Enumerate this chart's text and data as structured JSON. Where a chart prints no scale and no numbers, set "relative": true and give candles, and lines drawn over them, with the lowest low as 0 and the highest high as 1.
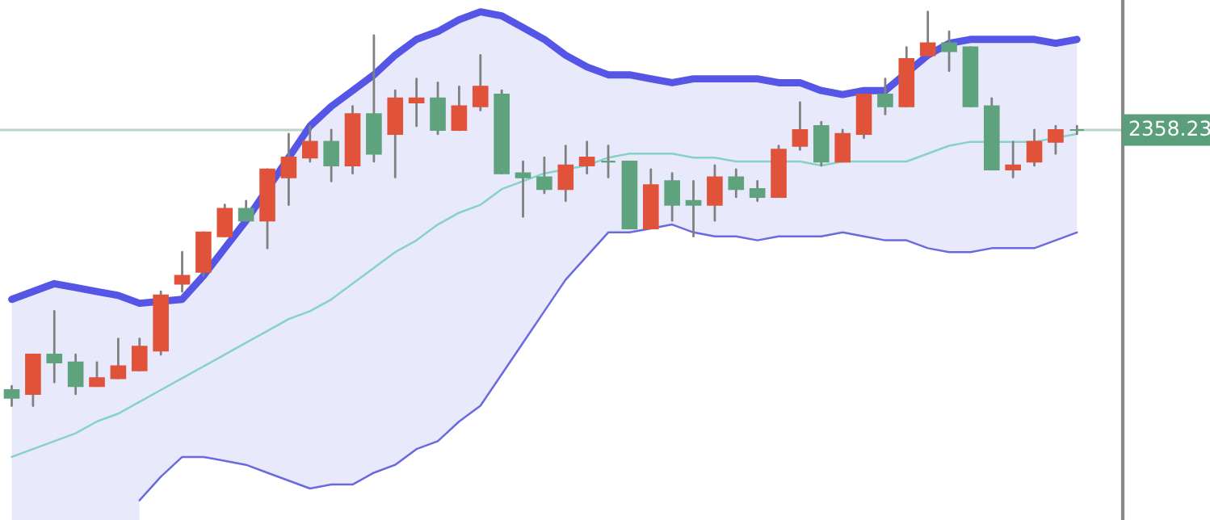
{
  "chart_data": {
    "type": "candlestick",
    "relative": true,
    "categories": [
      null,
      null,
      null,
      null,
      null,
      null,
      null,
      null,
      null,
      null,
      null,
      null,
      null,
      null,
      null,
      null,
      null,
      null,
      null,
      null,
      null,
      null,
      null,
      null,
      null,
      null,
      null,
      null,
      null,
      null,
      null,
      null,
      null,
      null,
      null,
      null,
      null,
      null,
      null,
      null,
      null,
      null,
      null,
      null,
      null,
      null,
      null,
      null,
      null,
      null,
      null
    ],
    "ohlc": [
      [
        0.04,
        0.05,
        0,
        0.02
      ],
      [
        0.03,
        0.13,
        0.0,
        0.13
      ],
      [
        0.13,
        0.24,
        0.06,
        0.11
      ],
      [
        0.11,
        0.13,
        0.03,
        0.05
      ],
      [
        0.05,
        0.11,
        0.05,
        0.07
      ],
      [
        0.07,
        0.17,
        0.07,
        0.1
      ],
      [
        0.09,
        0.17,
        0.09,
        0.15
      ],
      [
        0.14,
        0.29,
        0.13,
        0.28
      ],
      [
        0.31,
        0.39,
        0.29,
        0.33
      ],
      [
        0.34,
        0.44,
        0.33,
        0.44
      ],
      [
        0.43,
        0.51,
        0.43,
        0.5
      ],
      [
        0.5,
        0.52,
        0.47,
        0.47
      ],
      [
        0.47,
        0.6,
        0.4,
        0.6
      ],
      [
        0.58,
        0.69,
        0.51,
        0.63
      ],
      [
        0.63,
        0.71,
        0.62,
        0.67
      ],
      [
        0.67,
        0.7,
        0.57,
        0.61
      ],
      [
        0.61,
        0.76,
        0.59,
        0.74
      ],
      [
        0.74,
        0.94,
        0.62,
        0.64
      ],
      [
        0.69,
        0.8,
        0.58,
        0.78
      ],
      [
        0.77,
        0.83,
        0.71,
        0.78
      ],
      [
        0.78,
        0.82,
        0.69,
        0.7
      ],
      [
        0.7,
        0.81,
        0.7,
        0.76
      ],
      [
        0.76,
        0.89,
        0.75,
        0.81
      ],
      [
        0.79,
        0.8,
        0.59,
        0.59
      ],
      [
        0.59,
        0.62,
        0.48,
        0.58
      ],
      [
        0.58,
        0.63,
        0.54,
        0.55
      ],
      [
        0.55,
        0.66,
        0.52,
        0.61
      ],
      [
        0.61,
        0.67,
        0.59,
        0.63
      ],
      [
        0.62,
        0.66,
        0.58,
        0.62
      ],
      [
        0.62,
        0.62,
        0.45,
        0.45
      ],
      [
        0.45,
        0.6,
        0.45,
        0.56
      ],
      [
        0.57,
        0.59,
        0.47,
        0.51
      ],
      [
        0.52,
        0.57,
        0.43,
        0.51
      ],
      [
        0.51,
        0.61,
        0.47,
        0.58
      ],
      [
        0.58,
        0.6,
        0.53,
        0.55
      ],
      [
        0.55,
        0.57,
        0.52,
        0.53
      ],
      [
        0.53,
        0.66,
        0.53,
        0.65
      ],
      [
        0.66,
        0.77,
        0.65,
        0.7
      ],
      [
        0.71,
        0.72,
        0.61,
        0.62
      ],
      [
        0.62,
        0.7,
        0.62,
        0.69
      ],
      [
        0.69,
        0.79,
        0.68,
        0.79
      ],
      [
        0.79,
        0.83,
        0.74,
        0.76
      ],
      [
        0.76,
        0.91,
        0.76,
        0.88
      ],
      [
        0.89,
        1.0,
        0.89,
        0.92
      ],
      [
        0.92,
        0.95,
        0.85,
        0.9
      ],
      [
        0.91,
        0.91,
        0.76,
        0.76
      ],
      [
        0.76,
        0.78,
        0.6,
        0.6
      ],
      [
        0.6,
        0.67,
        0.58,
        0.61
      ],
      [
        0.62,
        0.7,
        0.61,
        0.67
      ],
      [
        0.67,
        0.71,
        0.64,
        0.7
      ],
      [
        0.7,
        0.71,
        0.69,
        0.7
      ]
    ],
    "colors": [
      "#5fa37e",
      "#e0533a",
      "#5fa37e",
      "#5fa37e",
      "#e0533a",
      "#e0533a",
      "#e0533a",
      "#e0533a",
      "#e0533a",
      "#e0533a",
      "#e0533a",
      "#5fa37e",
      "#e0533a",
      "#e0533a",
      "#e0533a",
      "#5fa37e",
      "#e0533a",
      "#5fa37e",
      "#e0533a",
      "#e0533a",
      "#5fa37e",
      "#e0533a",
      "#e0533a",
      "#5fa37e",
      "#5fa37e",
      "#5fa37e",
      "#e0533a",
      "#e0533a",
      "#5fa37e",
      "#5fa37e",
      "#e0533a",
      "#5fa37e",
      "#5fa37e",
      "#e0533a",
      "#5fa37e",
      "#5fa37e",
      "#e0533a",
      "#e0533a",
      "#5fa37e",
      "#e0533a",
      "#e0533a",
      "#5fa37e",
      "#e0533a",
      "#e0533a",
      "#5fa37e",
      "#5fa37e",
      "#5fa37e",
      "#e0533a",
      "#e0533a",
      "#e0533a",
      "#5fa37e"
    ],
    "series": [
      {
        "type": "area",
        "color": "#5656e6",
        "values": [
          0.27,
          0.29,
          0.31,
          0.3,
          0.29,
          0.28,
          0.26,
          null,
          0.27,
          0.33,
          0.4,
          0.47,
          null,
          0.63,
          0.71,
          0.76,
          0.8,
          0.84,
          0.89,
          0.93,
          0.95,
          0.98,
          1.0,
          0.99,
          0.96,
          0.93,
          0.89,
          0.86,
          0.84,
          0.84,
          0.83,
          0.82,
          0.83,
          0.83,
          0.83,
          0.83,
          0.82,
          0.82,
          0.8,
          0.79,
          0.8,
          0.8,
          null,
          0.89,
          0.92,
          0.93,
          0.93,
          0.93,
          0.93,
          0.92,
          0.93
        ]
      },
      {
        "type": "area",
        "color": "#6a6ae0",
        "values": [
          null,
          null,
          null,
          null,
          null,
          null,
          -0.24,
          -0.18,
          -0.13,
          -0.13,
          -0.14,
          -0.15,
          -0.17,
          -0.19,
          -0.21,
          -0.2,
          -0.2,
          -0.17,
          -0.15,
          -0.11,
          -0.09,
          -0.04,
          0,
          0.08,
          0.16,
          0.24,
          0.32,
          0.38,
          0.44,
          0.44,
          0.45,
          0.46,
          0.44,
          0.43,
          0.43,
          0.42,
          0.43,
          0.43,
          0.43,
          0.44,
          0.43,
          0.42,
          0.42,
          0.4,
          0.39,
          0.39,
          0.4,
          0.4,
          0.4,
          0.42,
          0.44
        ]
      },
      {
        "type": "line",
        "color": "#86d3c3",
        "values": [
          -0.13,
          -0.11,
          -0.09,
          -0.07,
          -0.04,
          -0.02,
          0.01,
          0.04,
          0.07,
          0.1,
          0.13,
          0.16,
          0.19,
          0.22,
          0.24,
          0.27,
          0.31,
          0.35,
          0.39,
          0.42,
          0.46,
          0.49,
          0.51,
          0.55,
          0.57,
          0.59,
          0.6,
          0.61,
          0.63,
          0.64,
          0.64,
          0.64,
          0.63,
          0.63,
          0.62,
          0.62,
          null,
          0.62,
          0.61,
          0.62,
          0.62,
          0.62,
          0.62,
          0.64,
          0.66,
          0.67,
          null,
          0.67,
          0.67,
          0.68,
          0.69
        ]
      }
    ],
    "ref_lines": [
      {
        "axis": "y",
        "value": 0.7,
        "color": "#b8d6c8"
      }
    ],
    "annotations": [
      "2358.23"
    ]
  }
}
